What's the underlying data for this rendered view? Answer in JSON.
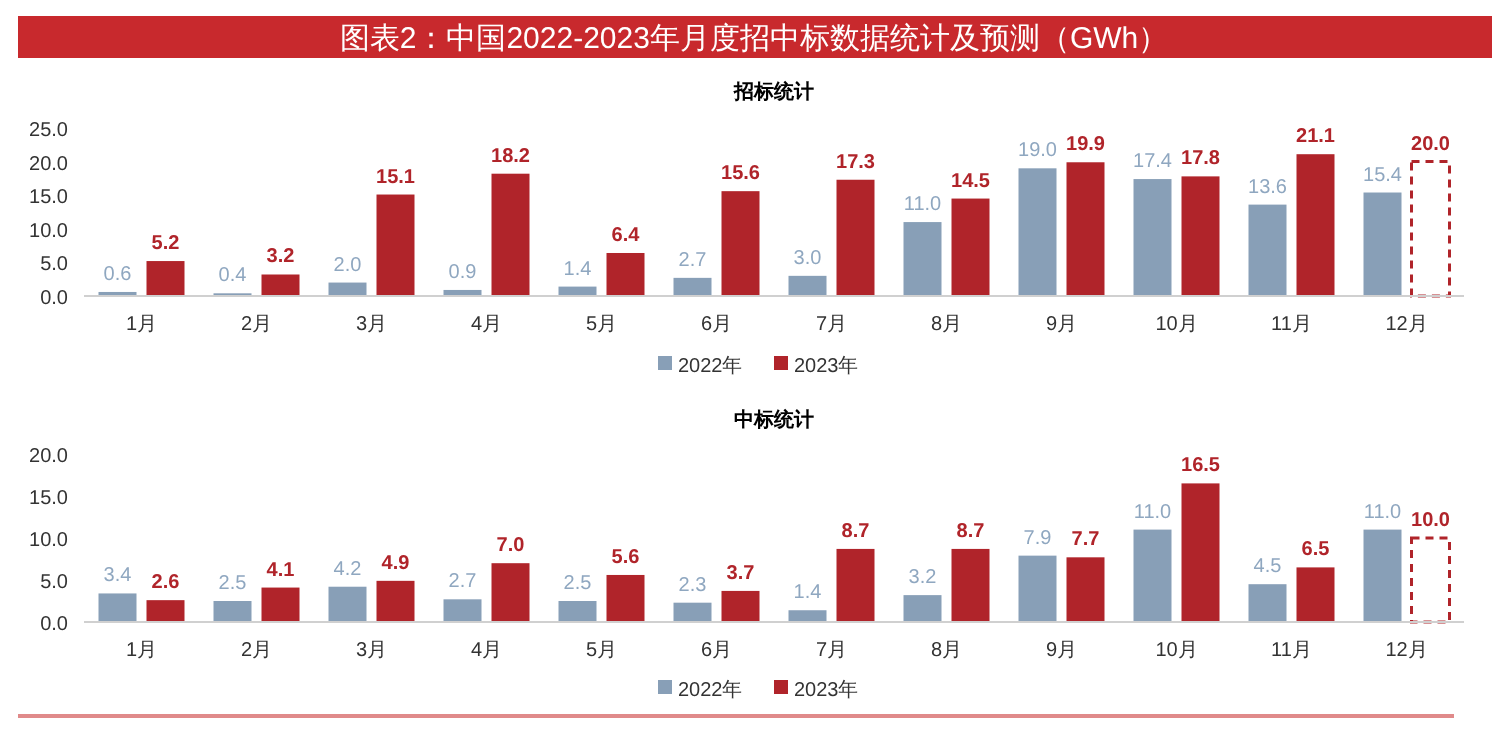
{
  "chart_data": [
    {
      "type": "other",
      "title": "图表2：中国2022-2023年月度招中标数据统计及预测（GWh）"
    },
    {
      "type": "bar",
      "title": "招标统计",
      "categories": [
        "1月",
        "2月",
        "3月",
        "4月",
        "5月",
        "6月",
        "7月",
        "8月",
        "9月",
        "10月",
        "11月",
        "12月"
      ],
      "series": [
        {
          "name": "2022年",
          "color": "#889fb7",
          "values": [
            0.6,
            0.4,
            2.0,
            0.9,
            1.4,
            2.7,
            3.0,
            11.0,
            19.0,
            17.4,
            13.6,
            15.4
          ],
          "value_labels": [
            "0.6",
            "0.4",
            "2.0",
            "0.9",
            "1.4",
            "2.7",
            "3.0",
            "11.0",
            "19.0",
            "17.4",
            "13.6",
            "15.4"
          ]
        },
        {
          "name": "2023年",
          "color": "#b0242a",
          "values": [
            5.2,
            3.2,
            15.1,
            18.2,
            6.4,
            15.6,
            17.3,
            14.5,
            19.9,
            17.8,
            21.1,
            null
          ],
          "value_labels": [
            "5.2",
            "3.2",
            "15.1",
            "18.2",
            "6.4",
            "15.6",
            "17.3",
            "14.5",
            "19.9",
            "17.8",
            "21.1",
            null
          ]
        },
        {
          "color": "#b0242a",
          "line_style": "dashed",
          "values": [
            null,
            null,
            null,
            null,
            null,
            null,
            null,
            null,
            null,
            null,
            null,
            20.0
          ],
          "value_labels": [
            null,
            null,
            null,
            null,
            null,
            null,
            null,
            null,
            null,
            null,
            null,
            "20.0"
          ]
        }
      ],
      "ylim": [
        0,
        25
      ],
      "yticks": [
        {
          "value": 0,
          "label": "0.0"
        },
        {
          "value": 5,
          "label": "5.0"
        },
        {
          "value": 10,
          "label": "10.0"
        },
        {
          "value": 15,
          "label": "15.0"
        },
        {
          "value": 20,
          "label": "20.0"
        },
        {
          "value": 25,
          "label": "25.0"
        }
      ],
      "legend": "bottom"
    },
    {
      "type": "bar",
      "title": "中标统计",
      "categories": [
        "1月",
        "2月",
        "3月",
        "4月",
        "5月",
        "6月",
        "7月",
        "8月",
        "9月",
        "10月",
        "11月",
        "12月"
      ],
      "series": [
        {
          "name": "2022年",
          "color": "#889fb7",
          "values": [
            3.4,
            2.5,
            4.2,
            2.7,
            2.5,
            2.3,
            1.4,
            3.2,
            7.9,
            11.0,
            4.5,
            11.0
          ],
          "value_labels": [
            "3.4",
            "2.5",
            "4.2",
            "2.7",
            "2.5",
            "2.3",
            "1.4",
            "3.2",
            "7.9",
            "11.0",
            "4.5",
            "11.0"
          ]
        },
        {
          "name": "2023年",
          "color": "#b0242a",
          "values": [
            2.6,
            4.1,
            4.9,
            7.0,
            5.6,
            3.7,
            8.7,
            8.7,
            7.7,
            16.5,
            6.5,
            null
          ],
          "value_labels": [
            "2.6",
            "4.1",
            "4.9",
            "7.0",
            "5.6",
            "3.7",
            "8.7",
            "8.7",
            "7.7",
            "16.5",
            "6.5",
            null
          ]
        },
        {
          "color": "#b0242a",
          "line_style": "dashed",
          "values": [
            null,
            null,
            null,
            null,
            null,
            null,
            null,
            null,
            null,
            null,
            null,
            10.0
          ],
          "value_labels": [
            null,
            null,
            null,
            null,
            null,
            null,
            null,
            null,
            null,
            null,
            null,
            "10.0"
          ]
        }
      ],
      "ylim": [
        0,
        20
      ],
      "yticks": [
        {
          "value": 0,
          "label": "0.0"
        },
        {
          "value": 5,
          "label": "5.0"
        },
        {
          "value": 10,
          "label": "10.0"
        },
        {
          "value": 15,
          "label": "15.0"
        },
        {
          "value": 20,
          "label": "20.0"
        }
      ],
      "legend": "bottom"
    }
  ]
}
